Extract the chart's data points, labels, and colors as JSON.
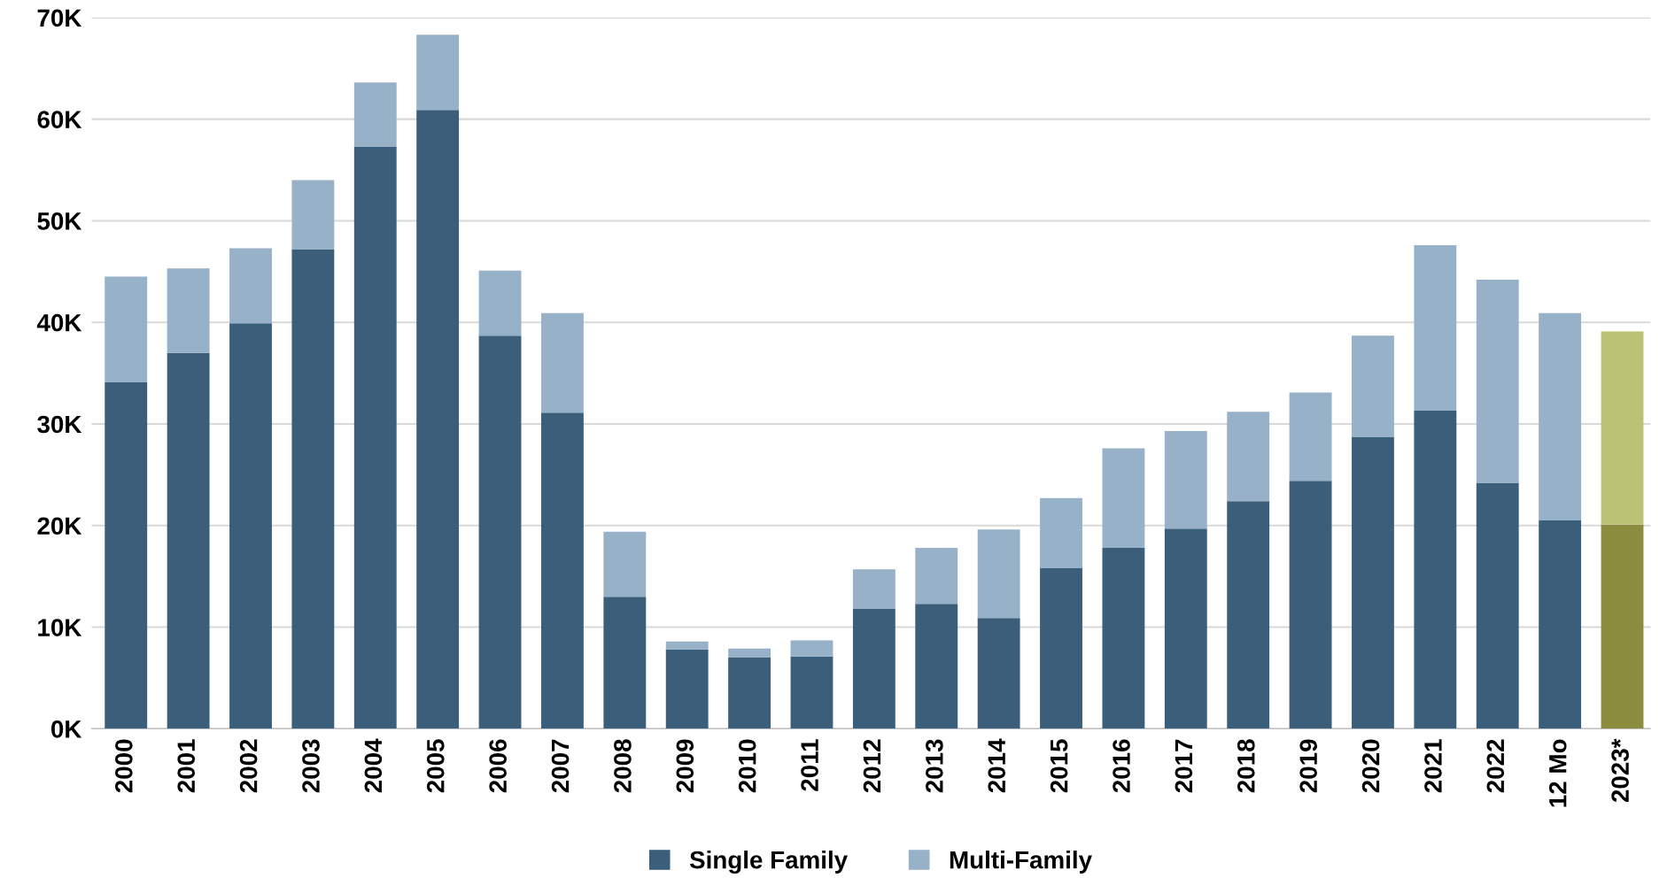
{
  "chart_data": {
    "type": "bar",
    "stacked": true,
    "categories": [
      "2000",
      "2001",
      "2002",
      "2003",
      "2004",
      "2005",
      "2006",
      "2007",
      "2008",
      "2009",
      "2010",
      "2011",
      "2012",
      "2013",
      "2014",
      "2015",
      "2016",
      "2017",
      "2018",
      "2019",
      "2020",
      "2021",
      "2022",
      "12 Mo",
      "2023*"
    ],
    "series": [
      {
        "name": "Single Family",
        "color": "#3b5f7a",
        "colors": [
          "#3b5f7a",
          "#3b5f7a",
          "#3b5f7a",
          "#3b5f7a",
          "#3b5f7a",
          "#3b5f7a",
          "#3b5f7a",
          "#3b5f7a",
          "#3b5f7a",
          "#3b5f7a",
          "#3b5f7a",
          "#3b5f7a",
          "#3b5f7a",
          "#3b5f7a",
          "#3b5f7a",
          "#3b5f7a",
          "#3b5f7a",
          "#3b5f7a",
          "#3b5f7a",
          "#3b5f7a",
          "#3b5f7a",
          "#3b5f7a",
          "#3b5f7a",
          "#3b5f7a",
          "#8c8c3e"
        ],
        "values": [
          34100,
          37000,
          39900,
          47200,
          57300,
          60900,
          38700,
          31100,
          13000,
          7800,
          7000,
          7100,
          11800,
          12300,
          10900,
          15800,
          17800,
          19700,
          22400,
          24400,
          28700,
          31300,
          24200,
          20500,
          20100
        ]
      },
      {
        "name": "Multi-Family",
        "color": "#96b1c8",
        "colors": [
          "#96b1c8",
          "#96b1c8",
          "#96b1c8",
          "#96b1c8",
          "#96b1c8",
          "#96b1c8",
          "#96b1c8",
          "#96b1c8",
          "#96b1c8",
          "#96b1c8",
          "#96b1c8",
          "#96b1c8",
          "#96b1c8",
          "#96b1c8",
          "#96b1c8",
          "#96b1c8",
          "#96b1c8",
          "#96b1c8",
          "#96b1c8",
          "#96b1c8",
          "#96b1c8",
          "#96b1c8",
          "#96b1c8",
          "#96b1c8",
          "#bcc273"
        ],
        "values": [
          10400,
          8300,
          7400,
          6800,
          6300,
          7400,
          6400,
          9800,
          6400,
          800,
          900,
          1600,
          3900,
          5500,
          8700,
          6900,
          9800,
          9600,
          8800,
          8700,
          10000,
          16300,
          20000,
          20400,
          19000
        ]
      }
    ],
    "ylim": [
      0,
      70000
    ],
    "yticks": [
      {
        "value": 0,
        "label": "0K"
      },
      {
        "value": 10000,
        "label": "10K"
      },
      {
        "value": 20000,
        "label": "20K"
      },
      {
        "value": 30000,
        "label": "30K"
      },
      {
        "value": 40000,
        "label": "40K"
      },
      {
        "value": 50000,
        "label": "50K"
      },
      {
        "value": 60000,
        "label": "60K"
      },
      {
        "value": 70000,
        "label": "70K"
      }
    ],
    "grid": "y",
    "legend": "bottom"
  }
}
